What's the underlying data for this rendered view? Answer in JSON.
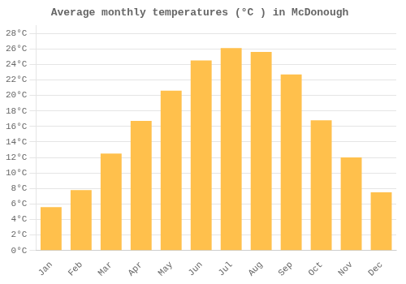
{
  "chart_data": {
    "type": "bar",
    "title": "Average monthly temperatures (°C ) in McDonough",
    "categories": [
      "Jan",
      "Feb",
      "Mar",
      "Apr",
      "May",
      "Jun",
      "Jul",
      "Aug",
      "Sep",
      "Oct",
      "Nov",
      "Dec"
    ],
    "values": [
      5.6,
      7.8,
      12.5,
      16.7,
      20.6,
      24.5,
      26.1,
      25.6,
      22.7,
      16.8,
      12.0,
      7.5
    ],
    "color": "#FFC04C",
    "ylim": [
      0,
      29
    ],
    "yticks": [
      {
        "value": 0,
        "label": "0°C"
      },
      {
        "value": 2,
        "label": "2°C"
      },
      {
        "value": 4,
        "label": "4°C"
      },
      {
        "value": 6,
        "label": "6°C"
      },
      {
        "value": 8,
        "label": "8°C"
      },
      {
        "value": 10,
        "label": "10°C"
      },
      {
        "value": 12,
        "label": "12°C"
      },
      {
        "value": 14,
        "label": "14°C"
      },
      {
        "value": 16,
        "label": "16°C"
      },
      {
        "value": 18,
        "label": "18°C"
      },
      {
        "value": 20,
        "label": "20°C"
      },
      {
        "value": 22,
        "label": "22°C"
      },
      {
        "value": 24,
        "label": "24°C"
      },
      {
        "value": 26,
        "label": "26°C"
      },
      {
        "value": 28,
        "label": "28°C"
      }
    ],
    "grid": true
  }
}
